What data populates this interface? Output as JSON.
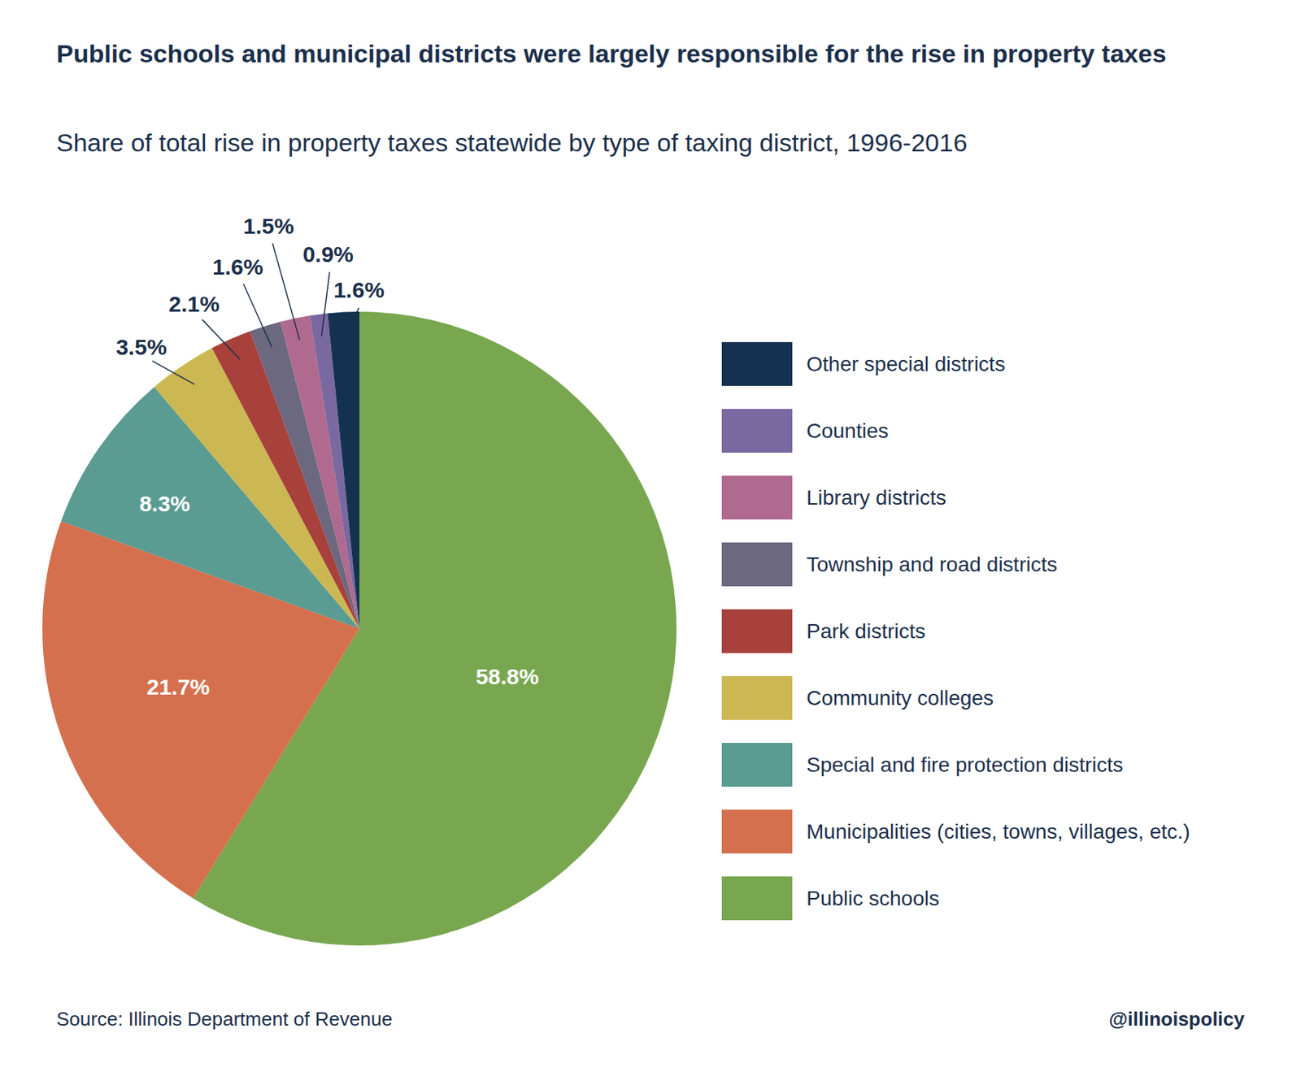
{
  "chart_data": {
    "type": "pie",
    "title": "Public schools and municipal districts were largely responsible for the rise in property taxes",
    "subtitle": "Share of total rise in property taxes statewide by type of taxing district, 1996-2016",
    "categories": [
      "Public schools",
      "Municipalities (cities, towns, villages, etc.)",
      "Special and fire protection districts",
      "Community colleges",
      "Park districts",
      "Township and road districts",
      "Library districts",
      "Counties",
      "Other special districts"
    ],
    "values": [
      58.8,
      21.7,
      8.3,
      3.5,
      2.1,
      1.6,
      1.5,
      0.9,
      1.6
    ],
    "value_labels": [
      "58.8%",
      "21.7%",
      "8.3%",
      "3.5%",
      "2.1%",
      "1.6%",
      "1.5%",
      "0.9%",
      "1.6%"
    ],
    "colors": [
      "#78a74f",
      "#d4704d",
      "#5a9b92",
      "#cbb852",
      "#a8403c",
      "#6b6880",
      "#b0698f",
      "#7a68a0",
      "#14324f"
    ],
    "data_labels": true,
    "legend": "right",
    "annotations": [
      "Source: Illinois Department of Revenue",
      "@illinoispolicy"
    ]
  }
}
